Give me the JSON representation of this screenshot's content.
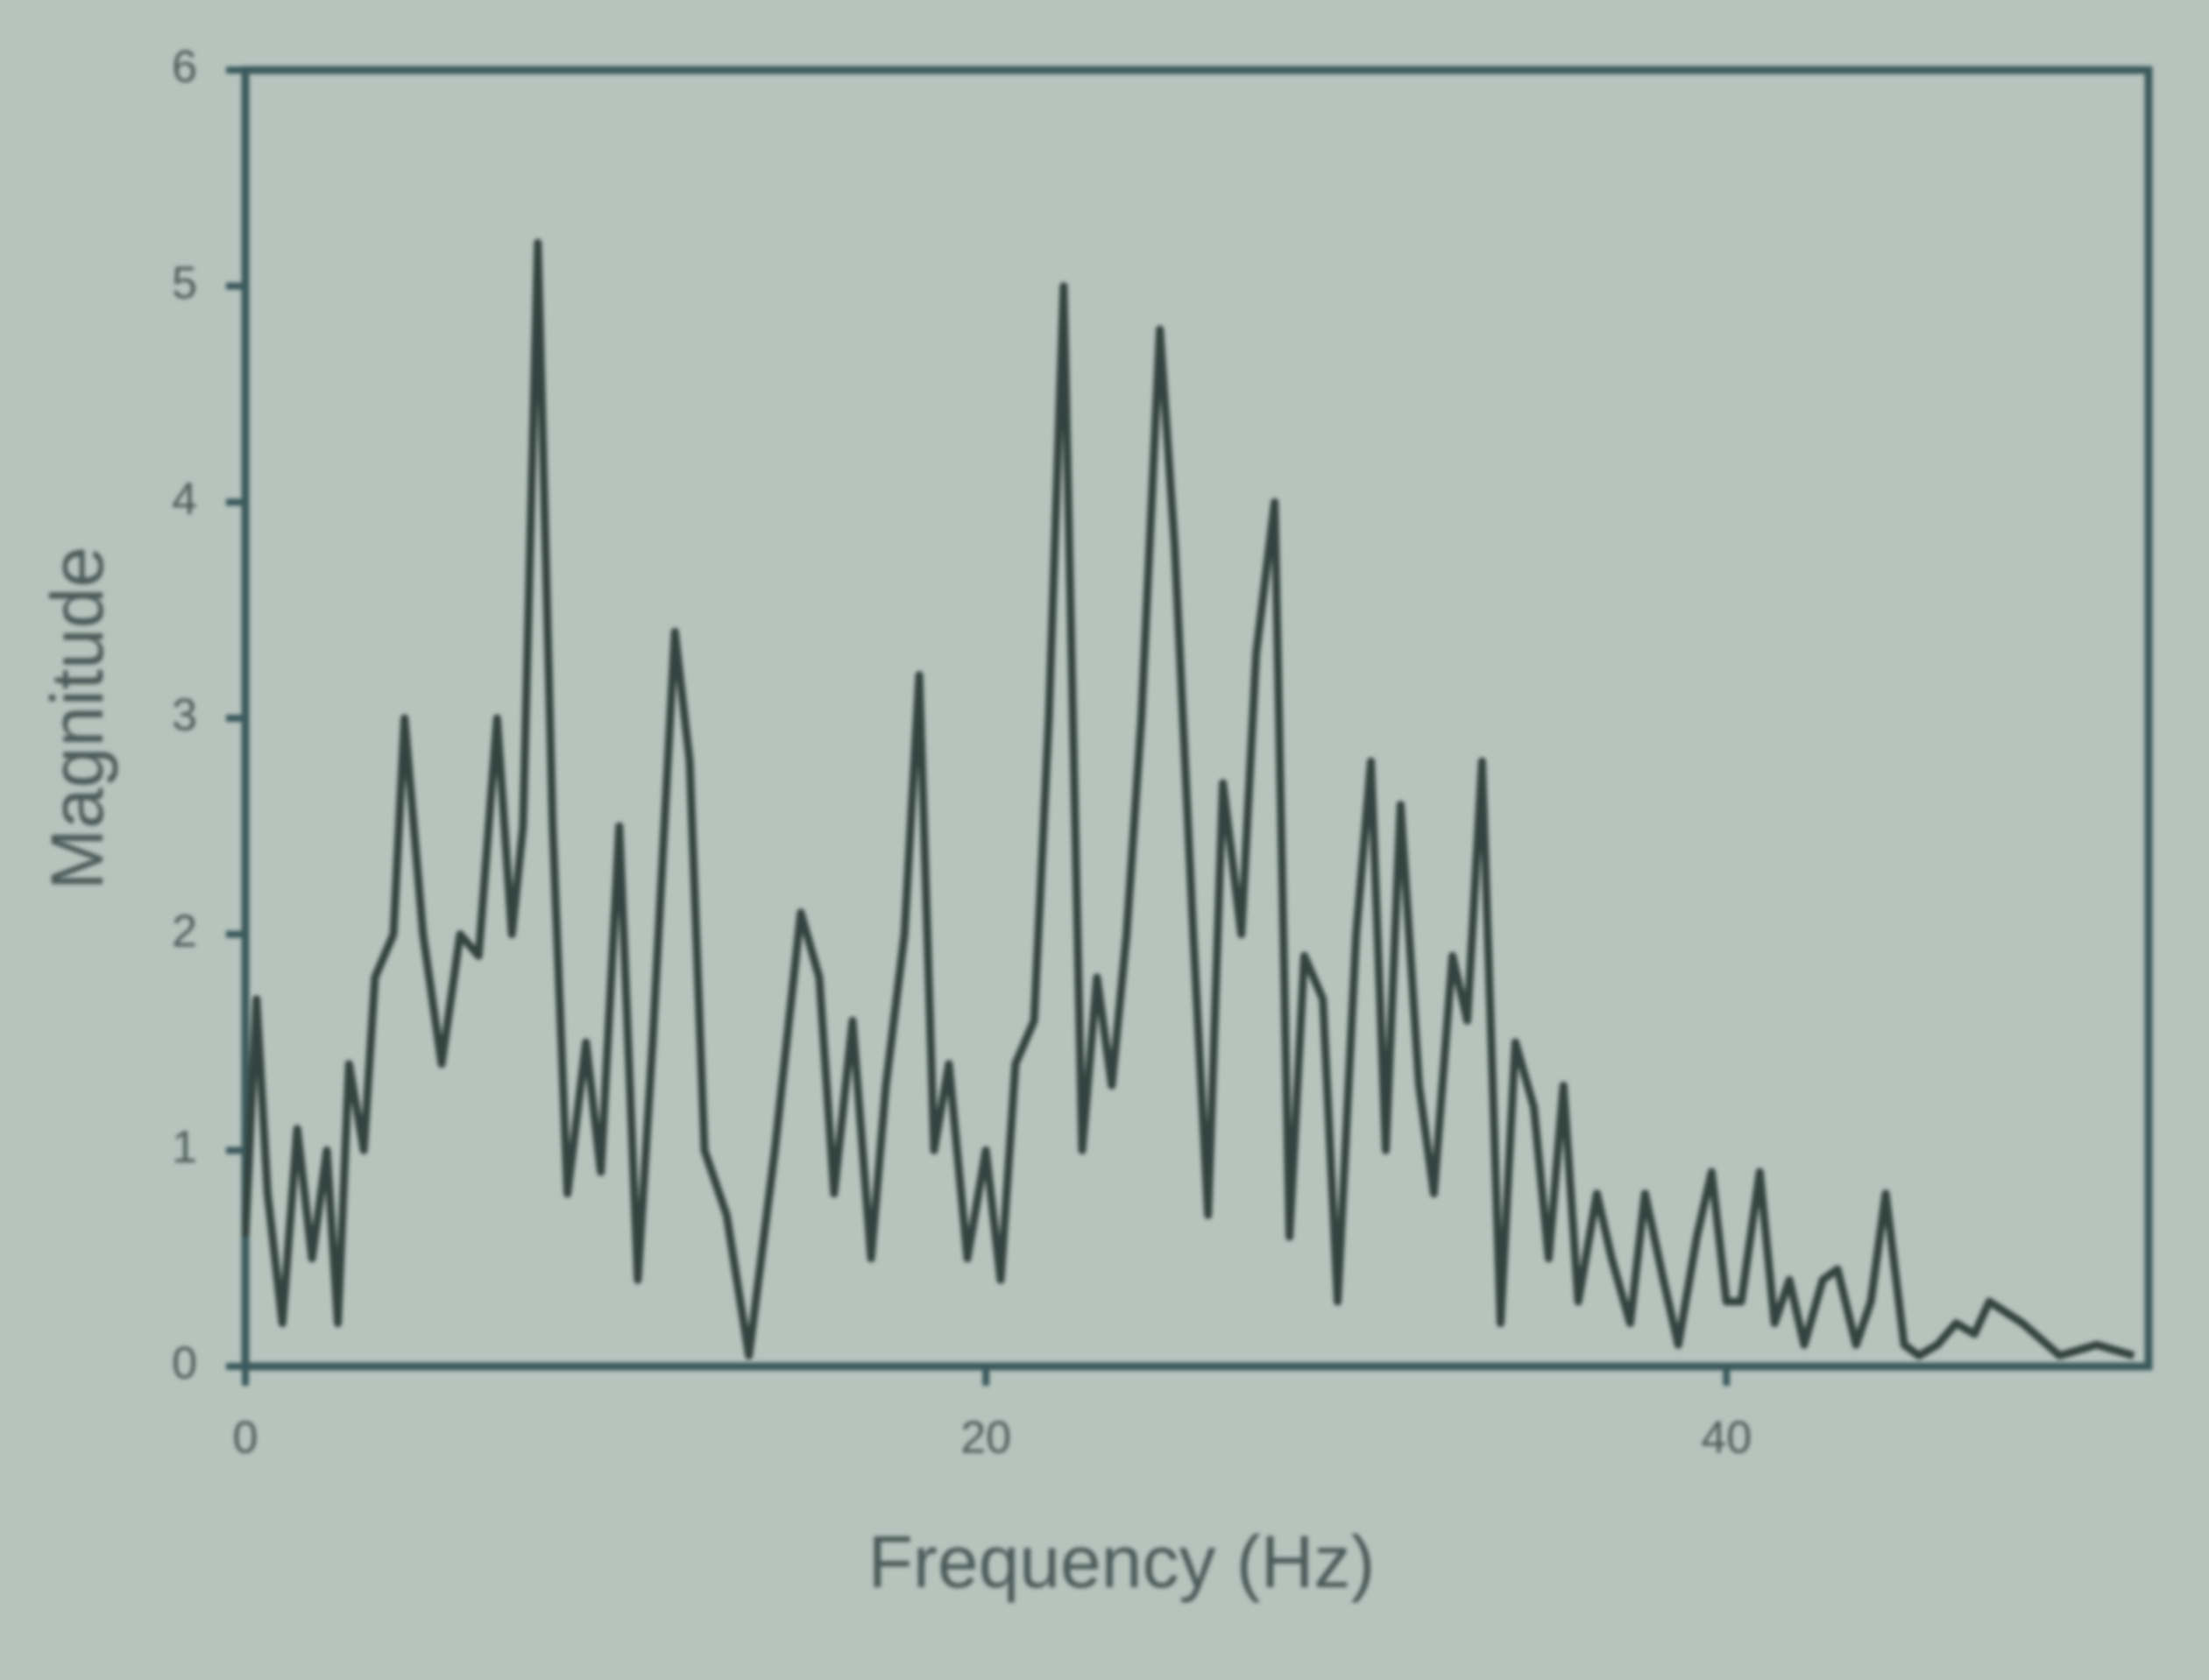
{
  "chart_data": {
    "type": "line",
    "x": [
      0,
      0.3,
      0.6,
      1,
      1.4,
      1.8,
      2.2,
      2.5,
      2.8,
      3.2,
      3.5,
      4,
      4.3,
      4.8,
      5.3,
      5.8,
      6.3,
      6.8,
      7.2,
      7.5,
      7.9,
      8.3,
      8.7,
      9.2,
      9.6,
      10.1,
      10.6,
      11,
      11.6,
      12,
      12.4,
      13,
      13.6,
      14.3,
      15,
      15.5,
      15.9,
      16.4,
      16.9,
      17.3,
      17.8,
      18.2,
      18.6,
      19,
      19.5,
      20,
      20.4,
      20.8,
      21.3,
      21.7,
      22.1,
      22.6,
      23,
      23.4,
      23.8,
      24.2,
      24.7,
      25.1,
      25.6,
      26,
      26.4,
      26.9,
      27.3,
      27.8,
      28.2,
      28.6,
      29.1,
      29.5,
      30,
      30.4,
      30.8,
      31.2,
      31.7,
      32.1,
      32.6,
      33,
      33.4,
      33.9,
      34.3,
      34.8,
      35.2,
      35.6,
      36,
      36.5,
      36.9,
      37.4,
      37.8,
      38.3,
      38.7,
      39.2,
      39.6,
      40,
      40.4,
      40.9,
      41.3,
      41.7,
      42.1,
      42.6,
      43,
      43.5,
      43.9,
      44.3,
      44.8,
      45.2,
      45.7,
      46.2,
      46.7,
      47.1,
      48,
      49,
      50,
      51
    ],
    "values": [
      0.6,
      1.7,
      0.8,
      0.2,
      1.1,
      0.5,
      1.0,
      0.2,
      1.4,
      1.0,
      1.8,
      2.0,
      3.0,
      2.0,
      1.4,
      2.0,
      1.9,
      3.0,
      2.0,
      2.5,
      5.2,
      2.5,
      0.8,
      1.5,
      0.9,
      2.5,
      0.4,
      1.5,
      3.4,
      2.8,
      1.0,
      0.7,
      0.05,
      1.0,
      2.1,
      1.8,
      0.8,
      1.6,
      0.5,
      1.3,
      2.0,
      3.2,
      1.0,
      1.4,
      0.5,
      1.0,
      0.4,
      1.4,
      1.6,
      3.0,
      5.0,
      1.0,
      1.8,
      1.3,
      2.0,
      3.0,
      4.8,
      3.8,
      2.0,
      0.7,
      2.7,
      2.0,
      3.3,
      4.0,
      0.6,
      1.9,
      1.7,
      0.3,
      2.0,
      2.8,
      1.0,
      2.6,
      1.3,
      0.8,
      1.9,
      1.6,
      2.8,
      0.2,
      1.5,
      1.2,
      0.5,
      1.3,
      0.3,
      0.8,
      0.5,
      0.2,
      0.8,
      0.4,
      0.1,
      0.6,
      0.9,
      0.3,
      0.3,
      0.9,
      0.2,
      0.4,
      0.1,
      0.4,
      0.45,
      0.1,
      0.3,
      0.8,
      0.1,
      0.05,
      0.1,
      0.2,
      0.15,
      0.3,
      0.2,
      0.05,
      0.1,
      0.05
    ],
    "color": "#33433f",
    "xlabel": "Frequency   (Hz)",
    "ylabel": "Magnitude",
    "xlim": [
      0,
      51.4
    ],
    "ylim": [
      0,
      6
    ],
    "xticks": [
      0,
      20,
      40
    ],
    "yticks": [
      0,
      1,
      2,
      3,
      4,
      5,
      6
    ]
  }
}
